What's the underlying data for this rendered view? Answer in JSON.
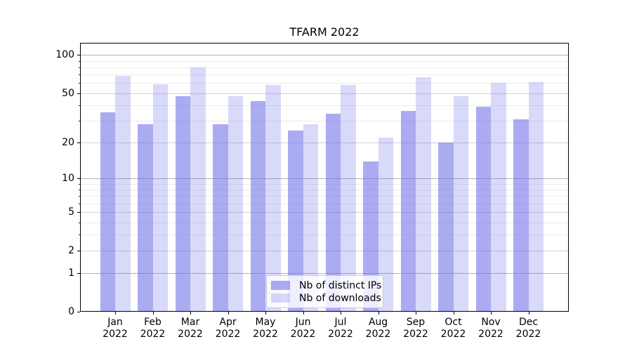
{
  "chart_data": {
    "type": "bar",
    "title": "TFARM 2022",
    "categories": [
      "Jan",
      "Feb",
      "Mar",
      "Apr",
      "May",
      "Jun",
      "Jul",
      "Aug",
      "Sep",
      "Oct",
      "Nov",
      "Dec"
    ],
    "category_year": "2022",
    "series": [
      {
        "name": "Nb of distinct IPs",
        "color": "#6e6ee8",
        "alpha": 0.58,
        "values": [
          35,
          28,
          47,
          28,
          43,
          25,
          34,
          14,
          36,
          20,
          39,
          31
        ]
      },
      {
        "name": "Nb of downloads",
        "color": "#6e6ee8",
        "alpha": 0.26,
        "values": [
          69,
          59,
          80,
          47,
          58,
          28,
          58,
          22,
          67,
          47,
          60,
          61
        ]
      }
    ],
    "xlabel": "",
    "ylabel": "",
    "yscale": "log1p",
    "ylim": [
      0,
      125
    ],
    "yticks": [
      100,
      50,
      20,
      10,
      5,
      2,
      1,
      0
    ],
    "yticks_minor": [
      3,
      4,
      6,
      7,
      8,
      9,
      30,
      40,
      60,
      70,
      80,
      90
    ],
    "grid": true,
    "legend_position": "lower center",
    "grid_colors": {
      "decade": "#b2b2b2",
      "labeled": "#d2d2d2",
      "minor": "#ebebeb"
    }
  }
}
